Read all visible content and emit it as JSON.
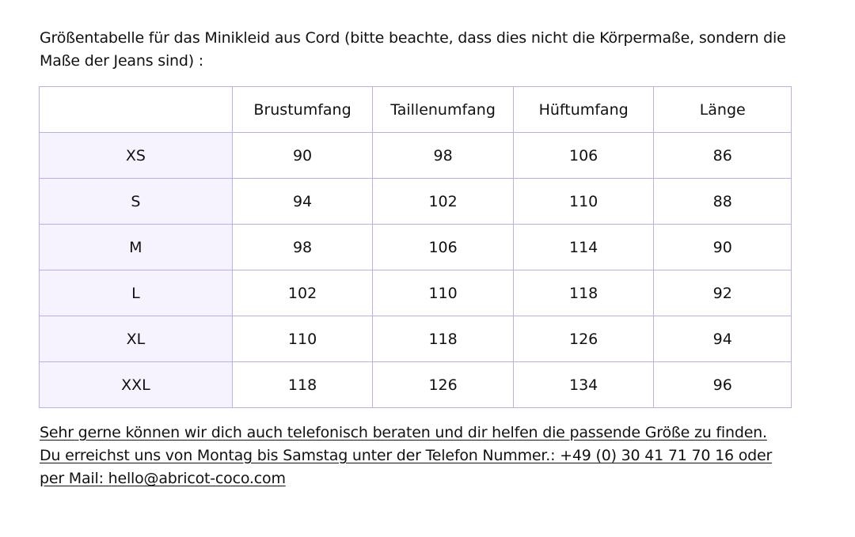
{
  "intro": {
    "text": "Größentabelle für das Minikleid aus Cord (bitte beachte, dass dies nicht die Körpermaße, sondern die Maße der Jeans sind) :"
  },
  "table": {
    "headers": [
      "",
      "Brustumfang",
      "Taillenumfang",
      "Hüftumfang",
      "Länge"
    ],
    "rows": [
      {
        "size": "XS",
        "values": [
          "90",
          "98",
          "106",
          "86"
        ]
      },
      {
        "size": "S",
        "values": [
          "94",
          "102",
          "110",
          "88"
        ]
      },
      {
        "size": "M",
        "values": [
          "98",
          "106",
          "114",
          "90"
        ]
      },
      {
        "size": "L",
        "values": [
          "102",
          "110",
          "118",
          "92"
        ]
      },
      {
        "size": "XL",
        "values": [
          "110",
          "118",
          "126",
          "94"
        ]
      },
      {
        "size": "XXL",
        "values": [
          "118",
          "126",
          "134",
          "96"
        ]
      }
    ],
    "border_color": "#b9b1ee",
    "size_column_bg": "#f6f3ff"
  },
  "footer": {
    "line1": "Sehr gerne können wir dich auch telefonisch beraten und dir helfen die passende Größe zu finden.",
    "line2": "Du erreichst uns von Montag bis Samstag unter der Telefon Nummer.: +49 (0) 30 41 71 70 16 oder",
    "line3": "per Mail: hello@abricot-coco.com"
  }
}
